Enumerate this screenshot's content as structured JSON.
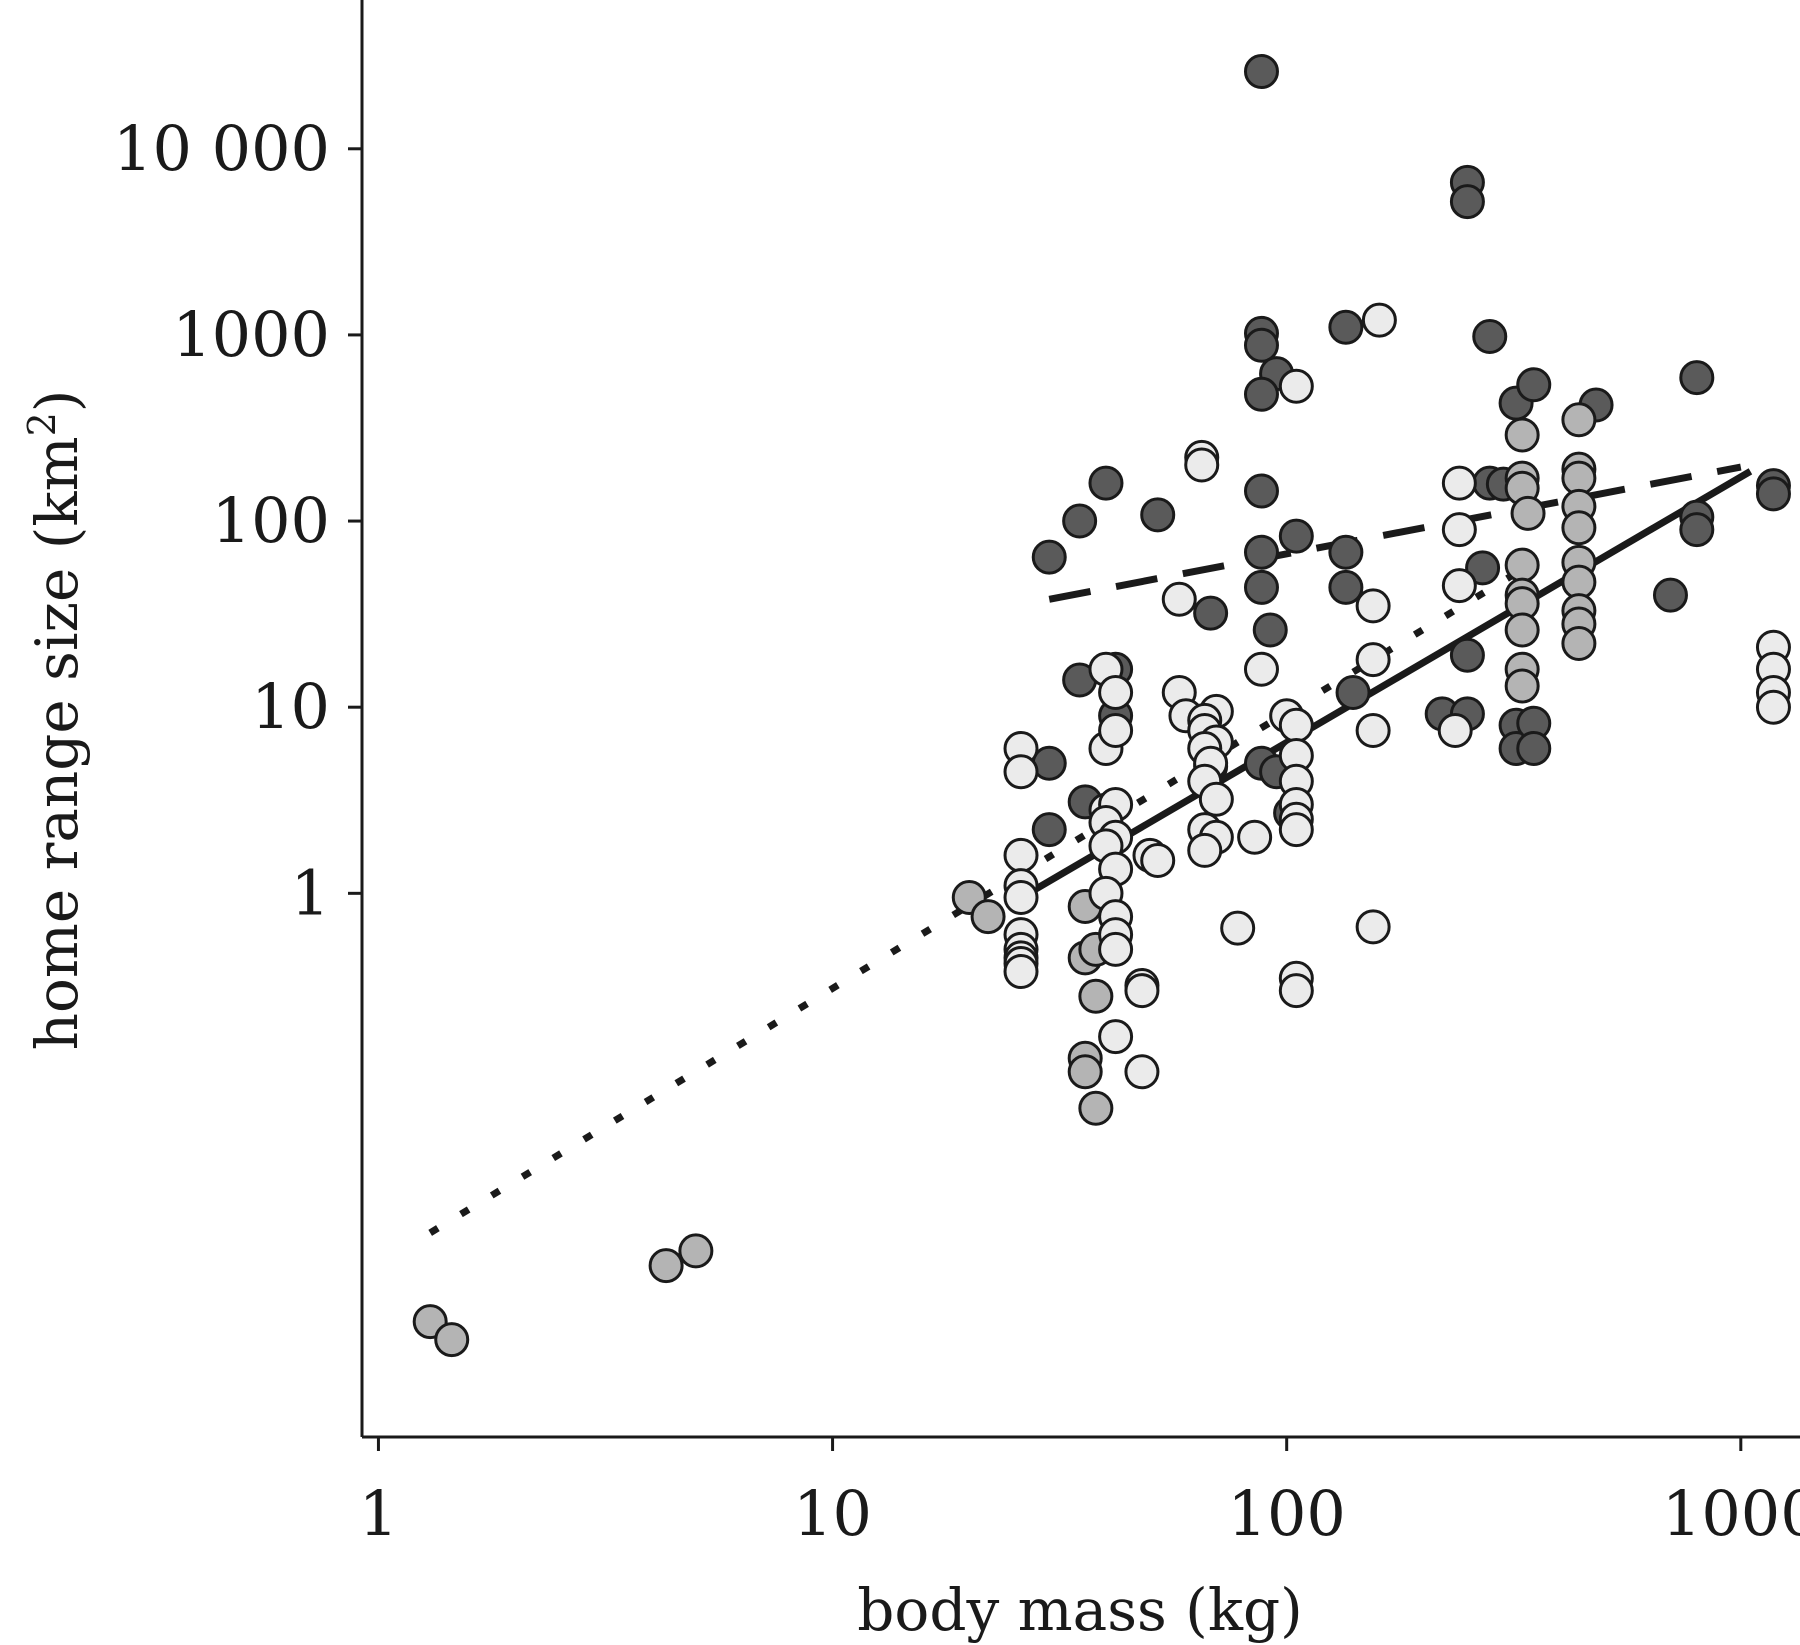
{
  "chart_data": {
    "type": "scatter",
    "xlabel": "body mass (kg)",
    "ylabel_main": "home range size (km",
    "ylabel_sup": "2",
    "ylabel_tail": ")",
    "x_scale": "log",
    "y_scale": "log",
    "xlim": [
      0.92,
      1350
    ],
    "ylim": [
      0.0012,
      63000
    ],
    "x_ticks": [
      1,
      10,
      100,
      1000
    ],
    "x_tick_labels": [
      "1",
      "10",
      "100",
      "1000"
    ],
    "y_ticks": [
      1,
      10,
      100,
      1000,
      10000
    ],
    "y_tick_labels": [
      "1",
      "10",
      "100",
      "1000",
      "10 000"
    ],
    "grid": false,
    "legend": "none",
    "colors": {
      "dark": "#5a5a5a",
      "mid": "#b4b4b4",
      "light": "#ebebeb",
      "outline": "#1a1a1a"
    },
    "series": [
      {
        "color": "#5a5a5a",
        "points": [
          [
            88,
            26000
          ],
          [
            250,
            6600
          ],
          [
            250,
            5200
          ],
          [
            88,
            1020
          ],
          [
            88,
            880
          ],
          [
            95,
            620
          ],
          [
            88,
            480
          ],
          [
            135,
            1100
          ],
          [
            280,
            980
          ],
          [
            320,
            430
          ],
          [
            350,
            540
          ],
          [
            480,
            420
          ],
          [
            800,
            590
          ],
          [
            40,
            160
          ],
          [
            52,
            108
          ],
          [
            35,
            100
          ],
          [
            30,
            64
          ],
          [
            88,
            145
          ],
          [
            105,
            83
          ],
          [
            88,
            68
          ],
          [
            135,
            68
          ],
          [
            280,
            160
          ],
          [
            300,
            158
          ],
          [
            270,
            56
          ],
          [
            88,
            44
          ],
          [
            135,
            44
          ],
          [
            68,
            32
          ],
          [
            92,
            26
          ],
          [
            700,
            40
          ],
          [
            800,
            105
          ],
          [
            800,
            90
          ],
          [
            1180,
            155
          ],
          [
            1180,
            140
          ],
          [
            35,
            14
          ],
          [
            42,
            16
          ],
          [
            42,
            9
          ],
          [
            140,
            12
          ],
          [
            250,
            19
          ],
          [
            30,
            5
          ],
          [
            68,
            4.8
          ],
          [
            88,
            5
          ],
          [
            95,
            4.5
          ],
          [
            36,
            3.1
          ],
          [
            30,
            2.2
          ],
          [
            102,
            2.7
          ],
          [
            220,
            9.2
          ],
          [
            250,
            9.2
          ],
          [
            320,
            8.0
          ],
          [
            320,
            6.0
          ],
          [
            350,
            8.2
          ],
          [
            350,
            6.0
          ]
        ]
      },
      {
        "color": "#b4b4b4",
        "points": [
          [
            1.3,
            0.005
          ],
          [
            1.45,
            0.004
          ],
          [
            4.3,
            0.01
          ],
          [
            5.0,
            0.012
          ],
          [
            20,
            0.95
          ],
          [
            22,
            0.75
          ],
          [
            36,
            0.85
          ],
          [
            36,
            0.45
          ],
          [
            38,
            0.5
          ],
          [
            38,
            0.28
          ],
          [
            36,
            0.13
          ],
          [
            36,
            0.11
          ],
          [
            38,
            0.07
          ],
          [
            330,
            290
          ],
          [
            330,
            170
          ],
          [
            330,
            150
          ],
          [
            340,
            110
          ],
          [
            330,
            58
          ],
          [
            330,
            40
          ],
          [
            330,
            36
          ],
          [
            330,
            26
          ],
          [
            330,
            16
          ],
          [
            330,
            13
          ],
          [
            440,
            350
          ],
          [
            440,
            190
          ],
          [
            440,
            170
          ],
          [
            440,
            120
          ],
          [
            440,
            92
          ],
          [
            440,
            60
          ],
          [
            440,
            47
          ],
          [
            440,
            33
          ],
          [
            440,
            28
          ],
          [
            440,
            22
          ]
        ]
      },
      {
        "color": "#ebebeb",
        "points": [
          [
            160,
            1200
          ],
          [
            105,
            530
          ],
          [
            65,
            220
          ],
          [
            65,
            200
          ],
          [
            240,
            160
          ],
          [
            240,
            90
          ],
          [
            240,
            45
          ],
          [
            58,
            38
          ],
          [
            155,
            35
          ],
          [
            155,
            18
          ],
          [
            88,
            16
          ],
          [
            40,
            16
          ],
          [
            42,
            12
          ],
          [
            58,
            12
          ],
          [
            60,
            9
          ],
          [
            70,
            9.5
          ],
          [
            66,
            8.5
          ],
          [
            66,
            7.5
          ],
          [
            70,
            6.5
          ],
          [
            66,
            6.0
          ],
          [
            68,
            5.0
          ],
          [
            66,
            4.0
          ],
          [
            70,
            3.2
          ],
          [
            66,
            2.2
          ],
          [
            70,
            2.0
          ],
          [
            66,
            1.7
          ],
          [
            100,
            9.0
          ],
          [
            105,
            8.0
          ],
          [
            105,
            5.5
          ],
          [
            105,
            4.0
          ],
          [
            105,
            3.0
          ],
          [
            105,
            2.5
          ],
          [
            105,
            2.2
          ],
          [
            85,
            2.0
          ],
          [
            26,
            6.0
          ],
          [
            26,
            4.5
          ],
          [
            26,
            1.6
          ],
          [
            26,
            1.1
          ],
          [
            26,
            0.95
          ],
          [
            26,
            0.6
          ],
          [
            26,
            0.5
          ],
          [
            26,
            0.45
          ],
          [
            26,
            0.42
          ],
          [
            26,
            0.38
          ],
          [
            40,
            6.0
          ],
          [
            42,
            7.5
          ],
          [
            40,
            2.8
          ],
          [
            42,
            3.0
          ],
          [
            40,
            2.4
          ],
          [
            42,
            2.0
          ],
          [
            40,
            1.8
          ],
          [
            42,
            1.35
          ],
          [
            50,
            1.6
          ],
          [
            52,
            1.5
          ],
          [
            40,
            1.0
          ],
          [
            42,
            0.75
          ],
          [
            42,
            0.6
          ],
          [
            42,
            0.5
          ],
          [
            48,
            0.32
          ],
          [
            48,
            0.3
          ],
          [
            42,
            0.17
          ],
          [
            48,
            0.11
          ],
          [
            155,
            7.5
          ],
          [
            235,
            7.5
          ],
          [
            78,
            0.65
          ],
          [
            155,
            0.66
          ],
          [
            105,
            0.35
          ],
          [
            105,
            0.3
          ],
          [
            1180,
            21
          ],
          [
            1180,
            16
          ],
          [
            1180,
            12
          ],
          [
            1180,
            10
          ]
        ]
      }
    ],
    "fit_lines": [
      {
        "style": "dotted",
        "x": [
          1.3,
          350
        ],
        "y": [
          0.015,
          60
        ]
      },
      {
        "style": "dashed",
        "x": [
          30,
          1000
        ],
        "y": [
          38,
          195
        ]
      },
      {
        "style": "solid",
        "x": [
          27,
          1050
        ],
        "y": [
          1.0,
          185
        ]
      }
    ]
  }
}
